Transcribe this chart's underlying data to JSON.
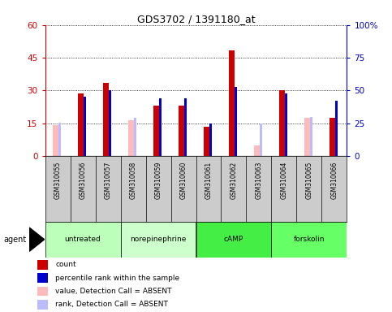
{
  "title": "GDS3702 / 1391180_at",
  "samples": [
    "GSM310055",
    "GSM310056",
    "GSM310057",
    "GSM310058",
    "GSM310059",
    "GSM310060",
    "GSM310061",
    "GSM310062",
    "GSM310063",
    "GSM310064",
    "GSM310065",
    "GSM310066"
  ],
  "agents": [
    {
      "label": "untreated",
      "start": 0,
      "end": 3,
      "color": "#bbffbb"
    },
    {
      "label": "norepinephrine",
      "start": 3,
      "end": 6,
      "color": "#ccffcc"
    },
    {
      "label": "cAMP",
      "start": 6,
      "end": 9,
      "color": "#44ee44"
    },
    {
      "label": "forskolin",
      "start": 9,
      "end": 12,
      "color": "#66ff66"
    }
  ],
  "count": [
    null,
    28.5,
    33.5,
    null,
    23.0,
    23.0,
    13.5,
    48.5,
    null,
    30.0,
    null,
    17.5
  ],
  "percentile": [
    null,
    45.0,
    50.0,
    null,
    44.0,
    44.0,
    25.0,
    53.0,
    null,
    47.5,
    null,
    42.0
  ],
  "value_absent": [
    14.0,
    null,
    null,
    16.5,
    null,
    null,
    null,
    null,
    5.0,
    null,
    17.5,
    null
  ],
  "rank_absent": [
    25.5,
    null,
    null,
    29.0,
    null,
    null,
    null,
    null,
    24.5,
    null,
    29.5,
    null
  ],
  "ylim_left": [
    0,
    60
  ],
  "ylim_right": [
    0,
    100
  ],
  "yticks_left": [
    0,
    15,
    30,
    45,
    60
  ],
  "yticks_right": [
    0,
    25,
    50,
    75,
    100
  ],
  "ytick_labels_left": [
    "0",
    "15",
    "30",
    "45",
    "60"
  ],
  "ytick_labels_right": [
    "0",
    "25",
    "50",
    "75",
    "100%"
  ],
  "left_axis_color": "#cc0000",
  "right_axis_color": "#0000cc",
  "legend_items": [
    {
      "label": "count",
      "color": "#cc0000"
    },
    {
      "label": "percentile rank within the sample",
      "color": "#0000cc"
    },
    {
      "label": "value, Detection Call = ABSENT",
      "color": "#ffbbbb"
    },
    {
      "label": "rank, Detection Call = ABSENT",
      "color": "#bbbbff"
    }
  ]
}
